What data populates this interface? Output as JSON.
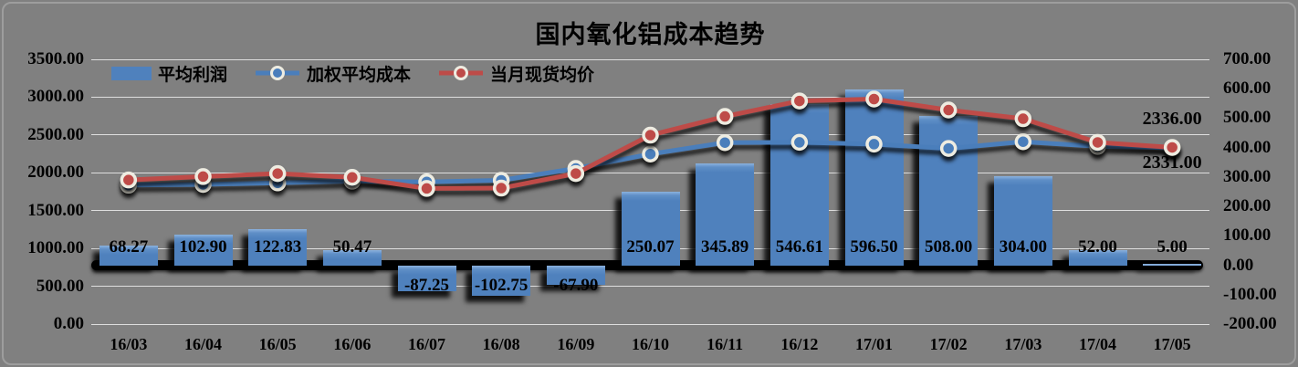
{
  "chart": {
    "title": "国内氧化铝成本趋势",
    "background_color": "#808080",
    "legend": [
      {
        "label": "平均利润",
        "swatch": "bar",
        "color": "#4f81bd"
      },
      {
        "label": "加权平均成本",
        "swatch": "line-marker",
        "color": "#4a7ebb"
      },
      {
        "label": "当月现货均价",
        "swatch": "line-marker",
        "color": "#be4b48"
      }
    ]
  },
  "chart_data": {
    "type": "combo",
    "title": "国内氧化铝成本趋势",
    "categories": [
      "16/03",
      "16/04",
      "16/05",
      "16/06",
      "16/07",
      "16/08",
      "16/09",
      "16/10",
      "16/11",
      "16/12",
      "17/01",
      "17/02",
      "17/03",
      "17/04",
      "17/05"
    ],
    "series": [
      {
        "name": "平均利润",
        "type": "bar",
        "axis": "right",
        "color": "#4f81bd",
        "values": [
          68.27,
          102.9,
          122.83,
          50.47,
          -87.25,
          -102.75,
          -67.9,
          250.07,
          345.89,
          546.61,
          596.5,
          508.0,
          304.0,
          52.0,
          5.0
        ],
        "labels": [
          "68.27",
          "102.90",
          "122.83",
          "50.47",
          "-87.25",
          "-102.75",
          "-67.90",
          "250.07",
          "345.89",
          "546.61",
          "596.50",
          "508.00",
          "304.00",
          "52.00",
          "5.00"
        ]
      },
      {
        "name": "加权平均成本",
        "type": "line",
        "axis": "left",
        "color": "#4a7ebb",
        "marker_ring": "#eeece1",
        "values": [
          1837,
          1847,
          1867,
          1890,
          1880,
          1901,
          2058,
          2248,
          2399,
          2403,
          2379,
          2322,
          2411,
          2350,
          2331
        ]
      },
      {
        "name": "当月现货均价",
        "type": "line",
        "axis": "left",
        "color": "#be4b48",
        "marker_ring": "#eeece1",
        "values": [
          1905,
          1950,
          1990,
          1940,
          1793,
          1798,
          1990,
          2498,
          2745,
          2950,
          2975,
          2830,
          2715,
          2402,
          2336
        ]
      }
    ],
    "left_axis": {
      "min": 0,
      "max": 3500,
      "ticks": [
        "3500.00",
        "3000.00",
        "2500.00",
        "2000.00",
        "1500.00",
        "1000.00",
        "500.00",
        "0.00"
      ]
    },
    "right_axis": {
      "min": -200,
      "max": 700,
      "ticks": [
        "700.00",
        "600.00",
        "500.00",
        "400.00",
        "300.00",
        "200.00",
        "100.00",
        "0.00",
        "-100.00",
        "-200.00"
      ]
    },
    "annotations": [
      {
        "text": "2336.00",
        "series": "当月现货均价",
        "position": "above-last-point"
      },
      {
        "text": "2331.00",
        "series": "加权平均成本",
        "position": "below-last-point"
      }
    ],
    "grid": true,
    "legend_position": "top-left"
  }
}
